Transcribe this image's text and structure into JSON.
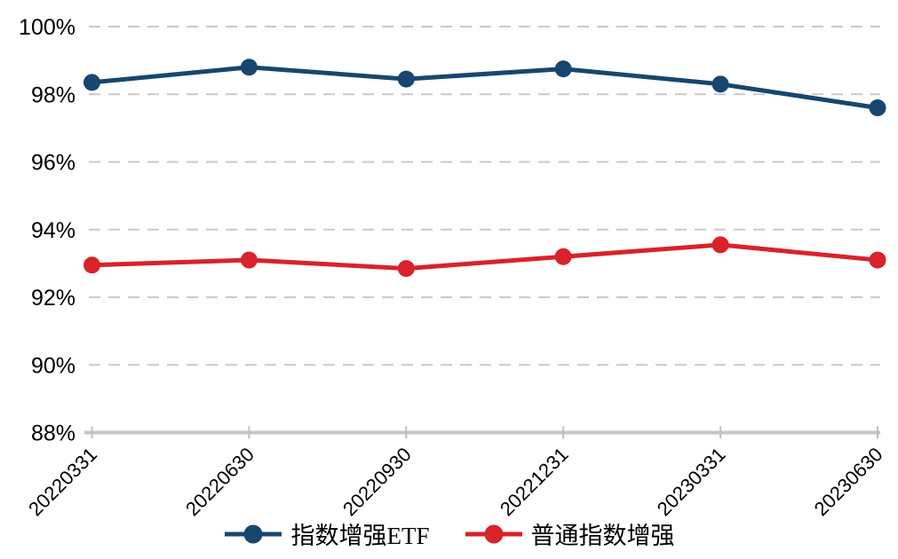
{
  "chart_data": {
    "type": "line",
    "categories": [
      "20220331",
      "20220630",
      "20220930",
      "20221231",
      "20230331",
      "20230630"
    ],
    "series": [
      {
        "id": "index-enhanced-etf",
        "name": "指数增强ETF",
        "color": "#17466F",
        "values": [
          98.35,
          98.8,
          98.45,
          98.75,
          98.3,
          97.6
        ]
      },
      {
        "id": "ordinary-index-enhanced",
        "name": "普通指数增强",
        "color": "#D9222A",
        "values": [
          92.95,
          93.1,
          92.85,
          93.2,
          93.55,
          93.1
        ]
      }
    ],
    "ylim": [
      88,
      100
    ],
    "yticks": [
      88,
      90,
      92,
      94,
      96,
      98,
      100
    ],
    "ytick_suffix": "%",
    "grid": "horizontal-dashed",
    "xtick_rotation_deg": 45,
    "legend_position": "bottom-center"
  },
  "colors": {
    "gridline": "#C9C9C9",
    "axis": "#C6C6C6",
    "tick": "#BFBFBF",
    "text": "#000000",
    "background": "#FFFFFF"
  }
}
